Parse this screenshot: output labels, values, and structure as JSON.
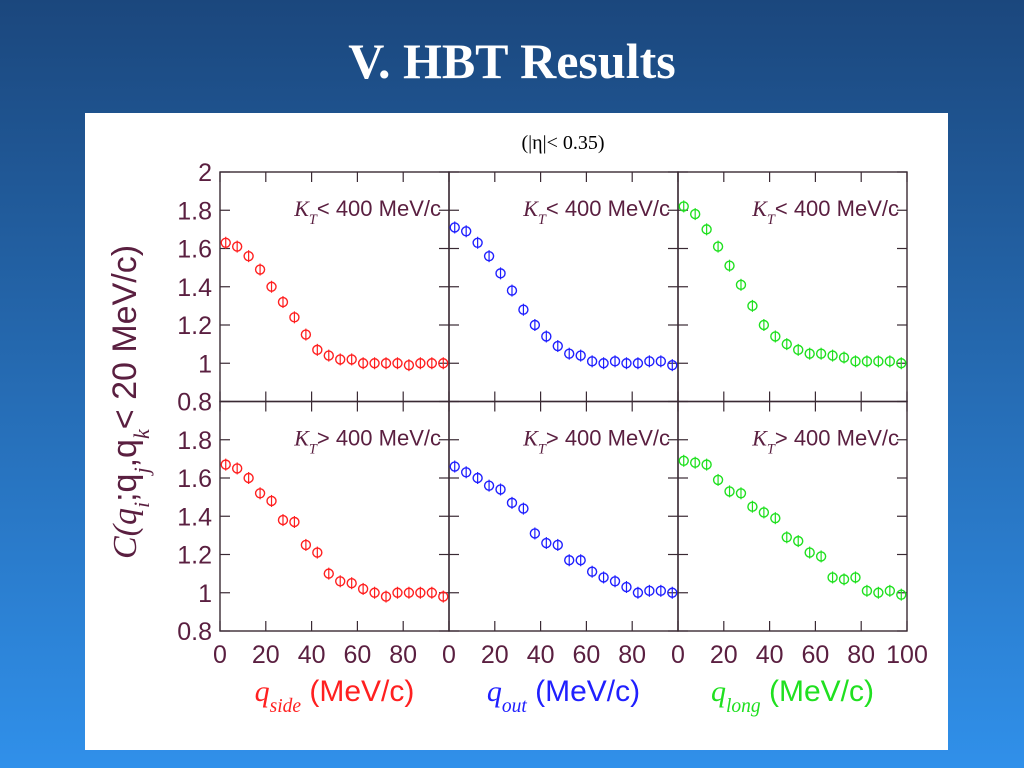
{
  "title": "V. HBT Results",
  "subtitle": "(|η|< 0.35)",
  "ylabel": [
    "C(q",
    "i",
    ";q",
    "j",
    ",q",
    "k",
    "< 20 MeV/c)"
  ],
  "chart_data": [
    {
      "type": "scatter",
      "annotation": [
        "K",
        "T",
        "< 400 MeV/c"
      ],
      "color": "#ff2020",
      "x": [
        2.5,
        7.5,
        12.5,
        17.5,
        22.5,
        27.5,
        32.5,
        37.5,
        42.5,
        47.5,
        52.5,
        57.5,
        62.5,
        67.5,
        72.5,
        77.5,
        82.5,
        87.5,
        92.5,
        97.5
      ],
      "values": [
        1.63,
        1.61,
        1.56,
        1.49,
        1.4,
        1.32,
        1.24,
        1.15,
        1.07,
        1.04,
        1.02,
        1.02,
        1.0,
        1.0,
        1.0,
        1.0,
        0.99,
        1.0,
        1.0,
        1.0
      ],
      "xlim": [
        0,
        100
      ],
      "ylim": [
        0.8,
        2
      ],
      "xticks": [
        0,
        20,
        40,
        60,
        80
      ],
      "yticks": [
        0.8,
        1,
        1.2,
        1.4,
        1.6,
        1.8,
        2
      ]
    },
    {
      "type": "scatter",
      "annotation": [
        "K",
        "T",
        "< 400 MeV/c"
      ],
      "color": "#2020ff",
      "x": [
        2.5,
        7.5,
        12.5,
        17.5,
        22.5,
        27.5,
        32.5,
        37.5,
        42.5,
        47.5,
        52.5,
        57.5,
        62.5,
        67.5,
        72.5,
        77.5,
        82.5,
        87.5,
        92.5,
        97.5
      ],
      "values": [
        1.71,
        1.69,
        1.63,
        1.56,
        1.47,
        1.38,
        1.28,
        1.2,
        1.14,
        1.09,
        1.05,
        1.04,
        1.01,
        1.0,
        1.01,
        1.0,
        1.0,
        1.01,
        1.01,
        0.99
      ],
      "xlim": [
        0,
        100
      ],
      "ylim": [
        0.8,
        2
      ],
      "xticks": [
        0,
        20,
        40,
        60,
        80
      ],
      "yticks": [
        0.8,
        1,
        1.2,
        1.4,
        1.6,
        1.8,
        2
      ]
    },
    {
      "type": "scatter",
      "annotation": [
        "K",
        "T",
        "< 400 MeV/c"
      ],
      "color": "#20e020",
      "x": [
        2.5,
        7.5,
        12.5,
        17.5,
        22.5,
        27.5,
        32.5,
        37.5,
        42.5,
        47.5,
        52.5,
        57.5,
        62.5,
        67.5,
        72.5,
        77.5,
        82.5,
        87.5,
        92.5,
        97.5
      ],
      "values": [
        1.82,
        1.78,
        1.7,
        1.61,
        1.51,
        1.41,
        1.3,
        1.2,
        1.14,
        1.1,
        1.07,
        1.05,
        1.05,
        1.04,
        1.03,
        1.01,
        1.01,
        1.01,
        1.01,
        1.0
      ],
      "xlim": [
        0,
        100
      ],
      "ylim": [
        0.8,
        2
      ],
      "xticks": [
        0,
        20,
        40,
        60,
        80,
        100
      ],
      "yticks": [
        0.8,
        1,
        1.2,
        1.4,
        1.6,
        1.8,
        2
      ]
    },
    {
      "type": "scatter",
      "annotation": [
        "K",
        "T",
        "> 400 MeV/c"
      ],
      "color": "#ff2020",
      "xlabel": [
        "q",
        "side",
        " (MeV/c)"
      ],
      "x": [
        2.5,
        7.5,
        12.5,
        17.5,
        22.5,
        27.5,
        32.5,
        37.5,
        42.5,
        47.5,
        52.5,
        57.5,
        62.5,
        67.5,
        72.5,
        77.5,
        82.5,
        87.5,
        92.5,
        97.5
      ],
      "values": [
        1.67,
        1.65,
        1.6,
        1.52,
        1.48,
        1.38,
        1.37,
        1.25,
        1.21,
        1.1,
        1.06,
        1.05,
        1.02,
        1.0,
        0.98,
        1.0,
        1.0,
        1.0,
        1.0,
        0.98
      ],
      "xlim": [
        0,
        100
      ],
      "ylim": [
        0.8,
        2
      ],
      "xticks": [
        0,
        20,
        40,
        60,
        80
      ],
      "yticks": [
        0.8,
        1,
        1.2,
        1.4,
        1.6,
        1.8
      ]
    },
    {
      "type": "scatter",
      "annotation": [
        "K",
        "T",
        "> 400 MeV/c"
      ],
      "color": "#2020ff",
      "xlabel": [
        "q",
        "out",
        " (MeV/c)"
      ],
      "x": [
        2.5,
        7.5,
        12.5,
        17.5,
        22.5,
        27.5,
        32.5,
        37.5,
        42.5,
        47.5,
        52.5,
        57.5,
        62.5,
        67.5,
        72.5,
        77.5,
        82.5,
        87.5,
        92.5,
        97.5
      ],
      "values": [
        1.66,
        1.63,
        1.6,
        1.56,
        1.54,
        1.47,
        1.44,
        1.31,
        1.26,
        1.25,
        1.17,
        1.17,
        1.11,
        1.08,
        1.06,
        1.03,
        1.0,
        1.01,
        1.01,
        1.0
      ],
      "xlim": [
        0,
        100
      ],
      "ylim": [
        0.8,
        2
      ],
      "xticks": [
        0,
        20,
        40,
        60,
        80
      ],
      "yticks": [
        0.8,
        1,
        1.2,
        1.4,
        1.6,
        1.8
      ]
    },
    {
      "type": "scatter",
      "annotation": [
        "K",
        "T",
        "> 400 MeV/c"
      ],
      "color": "#20e020",
      "xlabel": [
        "q",
        "long",
        " (MeV/c)"
      ],
      "x": [
        2.5,
        7.5,
        12.5,
        17.5,
        22.5,
        27.5,
        32.5,
        37.5,
        42.5,
        47.5,
        52.5,
        57.5,
        62.5,
        67.5,
        72.5,
        77.5,
        82.5,
        87.5,
        92.5,
        97.5
      ],
      "values": [
        1.69,
        1.68,
        1.67,
        1.59,
        1.53,
        1.52,
        1.45,
        1.42,
        1.39,
        1.29,
        1.27,
        1.21,
        1.19,
        1.08,
        1.07,
        1.08,
        1.01,
        1.0,
        1.01,
        0.99
      ],
      "xlim": [
        0,
        100
      ],
      "ylim": [
        0.8,
        2
      ],
      "xticks": [
        0,
        20,
        40,
        60,
        80,
        100
      ],
      "yticks": [
        0.8,
        1,
        1.2,
        1.4,
        1.6,
        1.8
      ]
    }
  ]
}
